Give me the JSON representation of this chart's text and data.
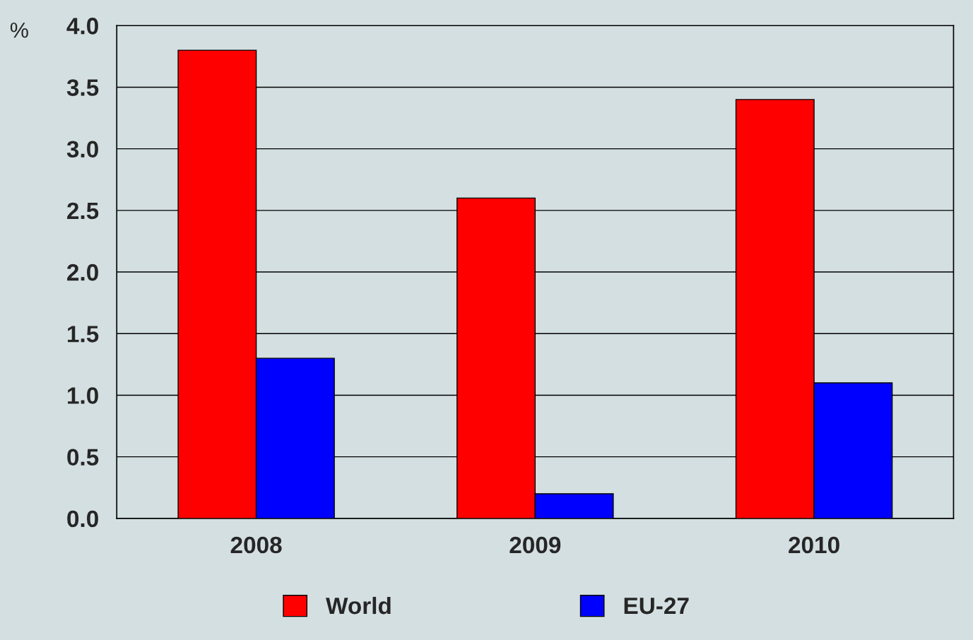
{
  "chart_data": {
    "type": "bar",
    "ylabel": "%",
    "categories": [
      "2008",
      "2009",
      "2010"
    ],
    "series": [
      {
        "name": "World",
        "color": "#ff0000",
        "values": [
          3.8,
          2.6,
          3.4
        ]
      },
      {
        "name": "EU-27",
        "color": "#0000ff",
        "values": [
          1.3,
          0.2,
          1.1
        ]
      }
    ],
    "ylim": [
      0,
      4.0
    ],
    "yticks": [
      {
        "value": 0,
        "label": "0.0"
      },
      0.5,
      {
        "value": 1,
        "label": "1.0"
      },
      1.5,
      {
        "value": 2,
        "label": "2.0"
      },
      2.5,
      {
        "value": 3,
        "label": "3.0"
      },
      3.5,
      {
        "value": 4,
        "label": "4.0"
      }
    ],
    "grid": "y",
    "legend": "bottom"
  }
}
